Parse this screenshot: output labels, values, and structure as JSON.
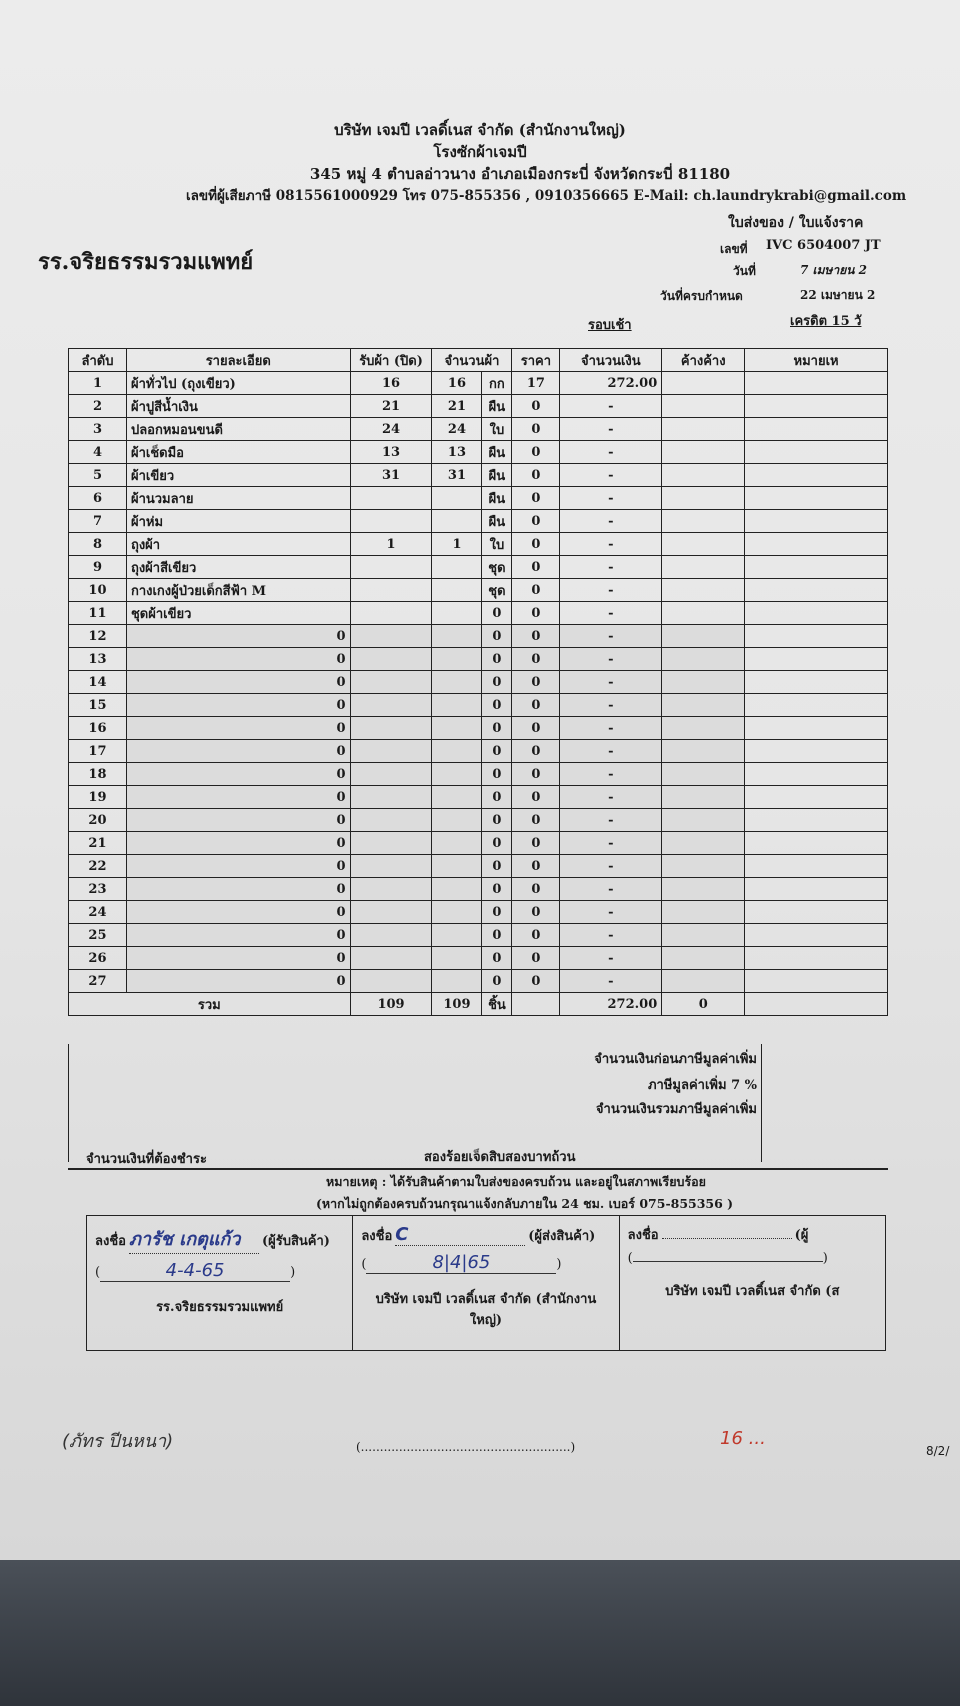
{
  "company": {
    "name": "บริษัท เจมปี เวลดิ์เนส จำกัด (สำนักงานใหญ่)",
    "branch": "โรงซักผ้าเจมปี",
    "address": "345 หมู่ 4 ตำบลอ่าวนาง อำเภอเมืองกระบี่ จังหวัดกระบี่ 81180",
    "contact": "เลขที่ผู้เสียภาษี 0815561000929 โทร 075-855356 , 0910356665 E-Mail: ch.laundrykrabi@gmail.com"
  },
  "doc": {
    "type": "ใบส่งของ / ใบแจ้งราค",
    "no_label": "เลขที่",
    "no": "IVC 6504007 JT",
    "date_label": "วันที่",
    "date": "7 เมษายน 2",
    "due_label": "วันที่ครบกำหนด",
    "due": "22 เมษายน 2",
    "round": "รอบเช้า",
    "credit": "เครดิต 15 วั"
  },
  "customer": "รร.จริยธรรมรวมแพทย์",
  "table": {
    "headers": [
      "ลำดับ",
      "รายละเอียด",
      "รับผ้า (ปิด)",
      "จำนวนผ้า",
      "ราคา",
      "จำนวนเงิน",
      "ค้างค้าง",
      "หมายเห"
    ],
    "rows": [
      [
        "1",
        "ผ้าทั่วไป (ถุงเขียว)",
        "16",
        "16",
        "กก",
        "17",
        "272.00"
      ],
      [
        "2",
        "ผ้าปูสีน้ำเงิน",
        "21",
        "21",
        "ผืน",
        "0",
        "-"
      ],
      [
        "3",
        "ปลอกหมอนขนดี",
        "24",
        "24",
        "ใบ",
        "0",
        "-"
      ],
      [
        "4",
        "ผ้าเช็ดมือ",
        "13",
        "13",
        "ผืน",
        "0",
        "-"
      ],
      [
        "5",
        "ผ้าเขียว",
        "31",
        "31",
        "ผืน",
        "0",
        "-"
      ],
      [
        "6",
        "ผ้านวมลาย",
        "",
        "",
        "ผืน",
        "0",
        "-"
      ],
      [
        "7",
        "ผ้าห่ม",
        "",
        "",
        "ผืน",
        "0",
        "-"
      ],
      [
        "8",
        "ถุงผ้า",
        "1",
        "1",
        "ใบ",
        "0",
        "-"
      ],
      [
        "9",
        "ถุงผ้าสีเขียว",
        "",
        "",
        "ชุด",
        "0",
        "-"
      ],
      [
        "10",
        "กางเกงผู้ป่วยเด็กสีฟ้า M",
        "",
        "",
        "ชุด",
        "0",
        "-"
      ],
      [
        "11",
        "ชุดผ้าเขียว",
        "",
        "",
        "0",
        "0",
        "-"
      ],
      [
        "12",
        "0",
        "",
        "",
        "0",
        "0",
        "-"
      ],
      [
        "13",
        "0",
        "",
        "",
        "0",
        "0",
        "-"
      ],
      [
        "14",
        "0",
        "",
        "",
        "0",
        "0",
        "-"
      ],
      [
        "15",
        "0",
        "",
        "",
        "0",
        "0",
        "-"
      ],
      [
        "16",
        "0",
        "",
        "",
        "0",
        "0",
        "-"
      ],
      [
        "17",
        "0",
        "",
        "",
        "0",
        "0",
        "-"
      ],
      [
        "18",
        "0",
        "",
        "",
        "0",
        "0",
        "-"
      ],
      [
        "19",
        "0",
        "",
        "",
        "0",
        "0",
        "-"
      ],
      [
        "20",
        "0",
        "",
        "",
        "0",
        "0",
        "-"
      ],
      [
        "21",
        "0",
        "",
        "",
        "0",
        "0",
        "-"
      ],
      [
        "22",
        "0",
        "",
        "",
        "0",
        "0",
        "-"
      ],
      [
        "23",
        "0",
        "",
        "",
        "0",
        "0",
        "-"
      ],
      [
        "24",
        "0",
        "",
        "",
        "0",
        "0",
        "-"
      ],
      [
        "25",
        "0",
        "",
        "",
        "0",
        "0",
        "-"
      ],
      [
        "26",
        "0",
        "",
        "",
        "0",
        "0",
        "-"
      ],
      [
        "27",
        "0",
        "",
        "",
        "0",
        "0",
        "-"
      ]
    ],
    "total": {
      "label": "รวม",
      "received": "109",
      "qty": "109",
      "unit": "ชิ้น",
      "amount": "272.00",
      "outstanding": "0"
    }
  },
  "summary": {
    "before_vat": "จำนวนเงินก่อนภาษีมูลค่าเพิ่ม",
    "vat": "ภาษีมูลค่าเพิ่ม 7 %",
    "with_vat": "จำนวนเงินรวมภาษีมูลค่าเพิ่ม"
  },
  "payment": {
    "label": "จำนวนเงินที่ต้องชำระ",
    "words": "สองร้อยเจ็ดสิบสองบาทถ้วน"
  },
  "note": {
    "line1": "หมายเหตุ : ได้รับสินค้าตามใบส่งของครบถ้วน และอยู่ในสภาพเรียบร้อย",
    "line2": "(หากไม่ถูกต้องครบถ้วนกรุณาแจ้งกลับภายใน 24 ชม. เบอร์ 075-855356 )"
  },
  "signatures": [
    {
      "label": "ลงชื่อ",
      "role": "(ผู้รับสินค้า)",
      "hand_name": "ภารัช เกตุแก้ว",
      "hand_date": "4-4-65",
      "org": "รร.จริยธรรมรวมแพทย์"
    },
    {
      "label": "ลงชื่อ",
      "role": "(ผู้ส่งสินค้า)",
      "hand_name": "C",
      "hand_date": "8|4|65",
      "org": "บริษัท เจมปี เวลดิ์เนส จำกัด (สำนักงานใหญ่)"
    },
    {
      "label": "ลงชื่อ",
      "role": "(ผู้",
      "hand_name": "",
      "hand_date": "",
      "org": "บริษัท เจมปี เวลดิ์เนส จำกัด (ส"
    }
  ],
  "bottom": {
    "hand1": "(ภัทร ปีนหนา)",
    "blank": "(.......................................................)",
    "hand2": "16 ...",
    "page": "8/2/"
  }
}
